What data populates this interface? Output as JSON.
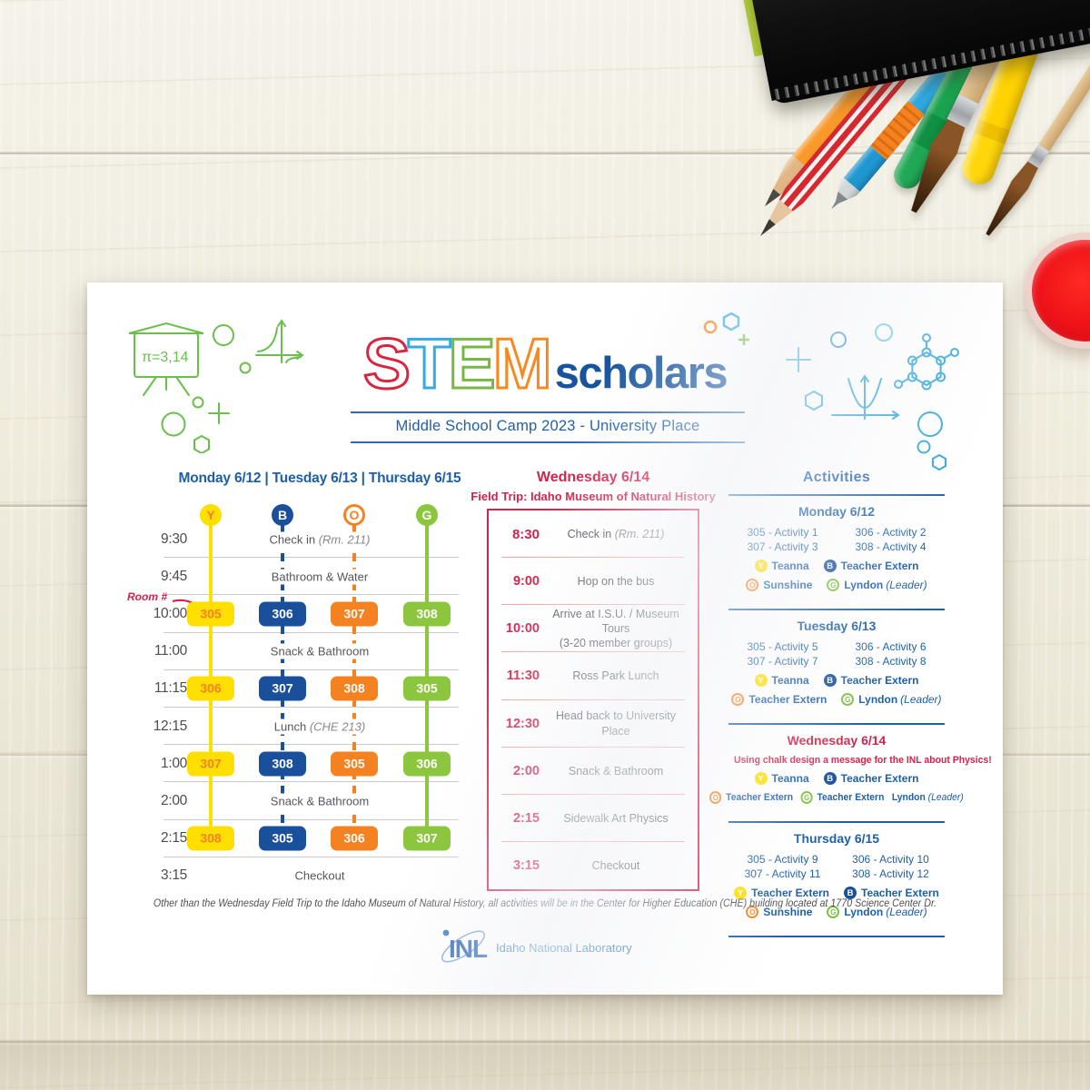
{
  "brand": {
    "stem_letters": [
      {
        "char": "S",
        "color": "#d7263d"
      },
      {
        "char": "T",
        "color": "#36a9e1"
      },
      {
        "char": "E",
        "color": "#76b843"
      },
      {
        "char": "M",
        "color": "#f6891f"
      }
    ],
    "wordmark_suffix": "scholars",
    "subtitle": "Middle School Camp 2023 - University Place"
  },
  "left_schedule": {
    "heading": "Monday 6/12 | Tuesday 6/13 | Thursday 6/15",
    "room_note": "Room #",
    "groups": [
      {
        "letter": "Y",
        "key": "y"
      },
      {
        "letter": "B",
        "key": "b"
      },
      {
        "letter": "O",
        "key": "o"
      },
      {
        "letter": "G",
        "key": "g"
      }
    ],
    "rows": [
      {
        "time": "9:30",
        "type": "event",
        "label": "Check in",
        "note": "(Rm. 211)"
      },
      {
        "time": "9:45",
        "type": "event",
        "label": "Bathroom & Water",
        "note": ""
      },
      {
        "time": "10:00",
        "type": "rooms",
        "rooms": [
          "305",
          "306",
          "307",
          "308"
        ]
      },
      {
        "time": "11:00",
        "type": "event",
        "label": "Snack & Bathroom",
        "note": ""
      },
      {
        "time": "11:15",
        "type": "rooms",
        "rooms": [
          "306",
          "307",
          "308",
          "305"
        ]
      },
      {
        "time": "12:15",
        "type": "event",
        "label": "Lunch",
        "note": "(CHE 213)"
      },
      {
        "time": "1:00",
        "type": "rooms",
        "rooms": [
          "307",
          "308",
          "305",
          "306"
        ]
      },
      {
        "time": "2:00",
        "type": "event",
        "label": "Snack & Bathroom",
        "note": ""
      },
      {
        "time": "2:15",
        "type": "rooms",
        "rooms": [
          "308",
          "305",
          "306",
          "307"
        ]
      },
      {
        "time": "3:15",
        "type": "event",
        "label": "Checkout",
        "note": ""
      }
    ]
  },
  "wednesday": {
    "heading": "Wednesday 6/14",
    "subheading": "Field Trip: Idaho Museum of Natural History",
    "rows": [
      {
        "time": "8:30",
        "label": "Check in",
        "note": "(Rm. 211)",
        "line2": "",
        "bold": true
      },
      {
        "time": "9:00",
        "label": "Hop on the bus",
        "note": "",
        "line2": "",
        "bold": false
      },
      {
        "time": "10:00",
        "label": "Arrive at I.S.U. / Museum Tours",
        "note": "",
        "line2": "(3-20 member groups)",
        "bold": false
      },
      {
        "time": "11:30",
        "label": "Ross Park Lunch",
        "note": "",
        "line2": "",
        "bold": false
      },
      {
        "time": "12:30",
        "label": "Head back to University Place",
        "note": "",
        "line2": "",
        "bold": false
      },
      {
        "time": "2:00",
        "label": "Snack & Bathroom",
        "note": "",
        "line2": "",
        "bold": false
      },
      {
        "time": "2:15",
        "label": "Sidewalk Art Physics",
        "note": "",
        "line2": "",
        "bold": false
      },
      {
        "time": "3:15",
        "label": "Checkout",
        "note": "",
        "line2": "",
        "bold": false
      }
    ]
  },
  "activities": {
    "heading": "Activities",
    "sections": [
      {
        "day": "Monday 6/12",
        "accent": "blue",
        "message": "",
        "assignments": [
          "305 - Activity 1",
          "306 - Activity 2",
          "307 - Activity 3",
          "308 - Activity 4"
        ],
        "staff": [
          [
            {
              "badge": "Y",
              "name": "Teanna",
              "note": ""
            },
            {
              "badge": "B",
              "name": "Teacher Extern",
              "note": ""
            }
          ],
          [
            {
              "badge": "O",
              "name": "Sunshine",
              "note": ""
            },
            {
              "badge": "G",
              "name": "Lyndon",
              "note": "(Leader)"
            }
          ]
        ]
      },
      {
        "day": "Tuesday 6/13",
        "accent": "blue",
        "message": "",
        "assignments": [
          "305 - Activity 5",
          "306 - Activity 6",
          "307 - Activity 7",
          "308 - Activity 8"
        ],
        "staff": [
          [
            {
              "badge": "Y",
              "name": "Teanna",
              "note": ""
            },
            {
              "badge": "B",
              "name": "Teacher Extern",
              "note": ""
            }
          ],
          [
            {
              "badge": "O",
              "name": "Teacher Extern",
              "note": ""
            },
            {
              "badge": "G",
              "name": "Lyndon",
              "note": "(Leader)"
            }
          ]
        ]
      },
      {
        "day": "Wednesday 6/14",
        "accent": "red",
        "message": "Using chalk design a message for the INL about Physics!",
        "assignments": [],
        "staff": [
          [
            {
              "badge": "Y",
              "name": "Teanna",
              "note": ""
            },
            {
              "badge": "B",
              "name": "Teacher Extern",
              "note": ""
            }
          ],
          [
            {
              "badge": "O",
              "name": "Teacher Extern",
              "note": ""
            },
            {
              "badge": "G",
              "name": "Teacher Extern",
              "note": ""
            },
            {
              "badge": "",
              "name": "Lyndon",
              "note": "(Leader)"
            }
          ]
        ]
      },
      {
        "day": "Thursday 6/15",
        "accent": "blue",
        "message": "",
        "assignments": [
          "305 - Activity 9",
          "306 - Activity 10",
          "307 - Activity 11",
          "308 - Activity 12"
        ],
        "staff": [
          [
            {
              "badge": "Y",
              "name": "Teacher Extern",
              "note": ""
            },
            {
              "badge": "B",
              "name": "Teacher Extern",
              "note": ""
            }
          ],
          [
            {
              "badge": "O",
              "name": "Sunshine",
              "note": ""
            },
            {
              "badge": "G",
              "name": "Lyndon",
              "note": "(Leader)"
            }
          ]
        ]
      }
    ]
  },
  "footer": {
    "note": "Other than the Wednesday Field Trip to the Idaho Museum of Natural History, all activities will be in the Center for Higher Education (CHE) building located at 1770 Science Center Dr.",
    "logo_acronym": "INL",
    "logo_label": "Idaho National Laboratory"
  },
  "colors": {
    "blue": "#1d5fa7",
    "navy": "#1a4f9c",
    "red": "#d2234c",
    "yellow": "#ffdf00",
    "orange": "#f58220",
    "green": "#8cc63e",
    "light_blue": "#36a9e1",
    "text_gray": "#55565a",
    "line_gray": "#c9cacb",
    "salmon": "#f0a79d"
  }
}
